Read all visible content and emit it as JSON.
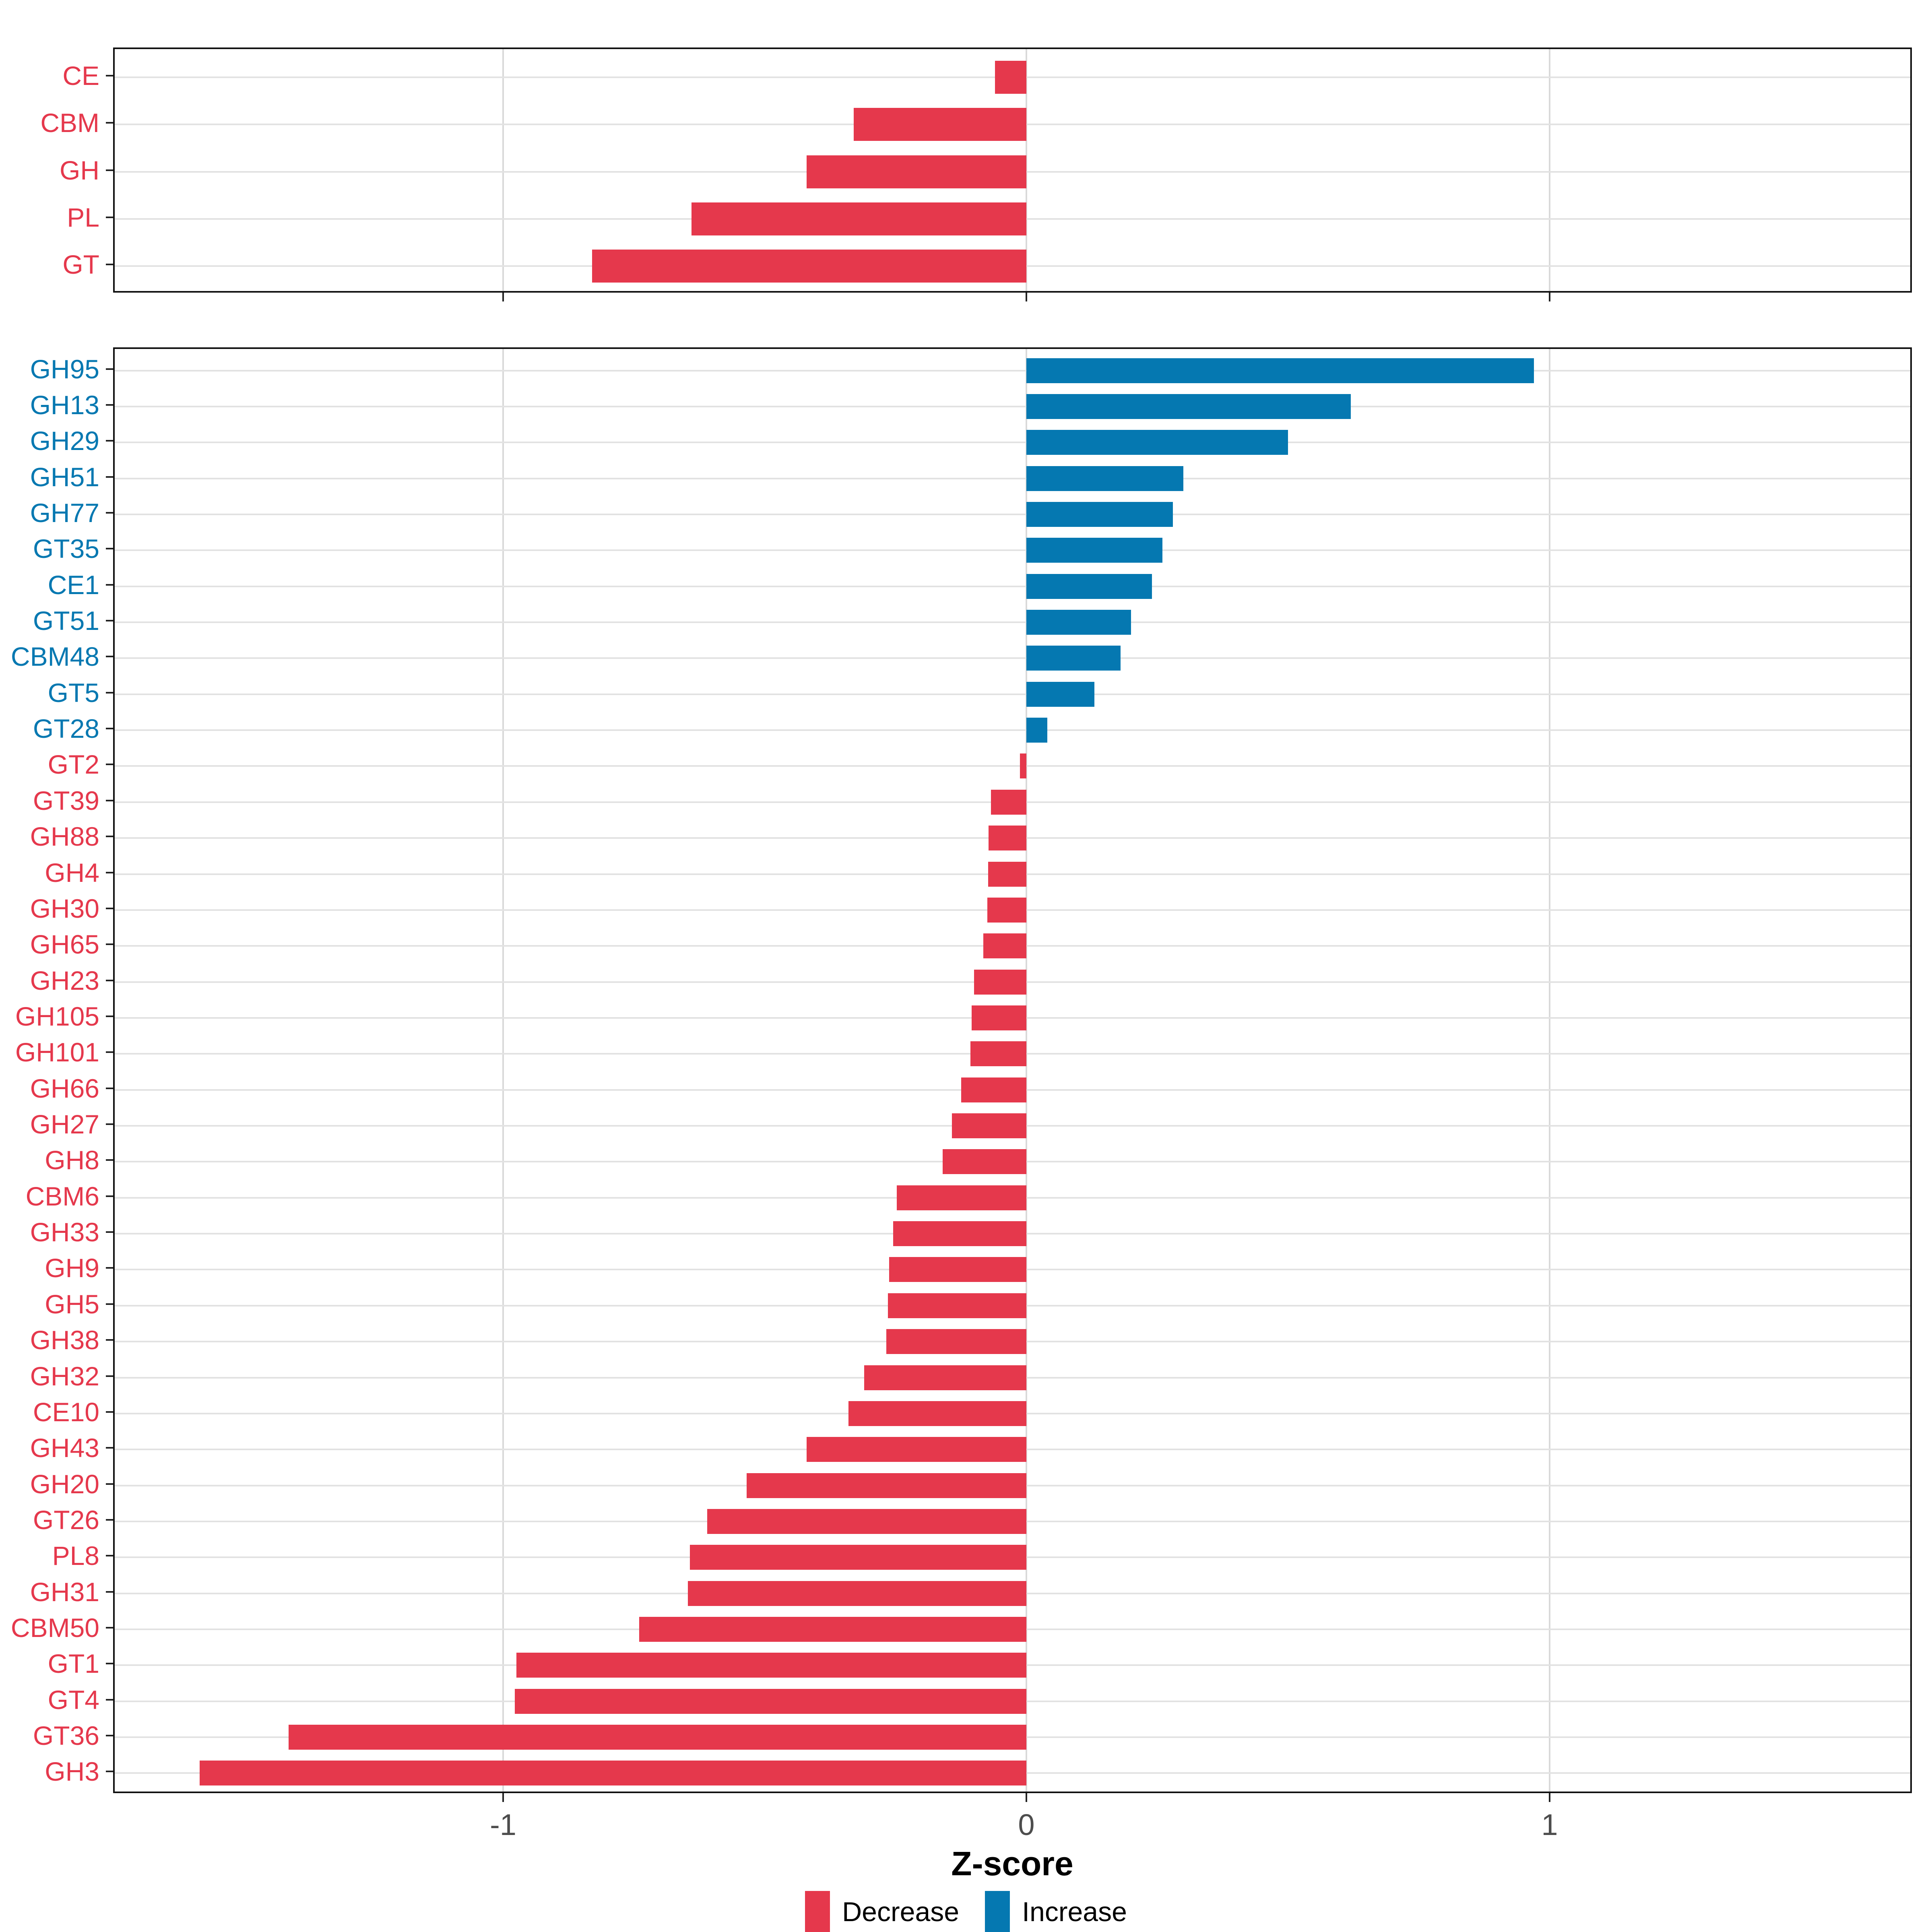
{
  "figure": {
    "xlabel": "Z-score",
    "x_ticks": [
      {
        "label": "-1",
        "value": -1
      },
      {
        "label": "0",
        "value": 0
      },
      {
        "label": "1",
        "value": 1
      }
    ],
    "legend": {
      "position": "bottom",
      "items": [
        {
          "label": "Decrease",
          "color": "#e5384c"
        },
        {
          "label": "Increase",
          "color": "#0578b1"
        }
      ]
    },
    "colors": {
      "decrease": "#e5384c",
      "increase": "#0578b1",
      "grid": "#e2e2e2",
      "vgrid": "#d9d9d9",
      "panel_border": "#111111",
      "tick": "#222222",
      "axis_text": "#4d4d4d",
      "axis_title": "#000000"
    }
  },
  "chart_data": [
    {
      "type": "bar",
      "orientation": "horizontal",
      "panel": "cazyme-classes",
      "title": "",
      "xlabel": "Z-score",
      "xlim": [
        -1.745,
        1.69
      ],
      "grid": true,
      "categories": [
        "CE",
        "CBM",
        "GH",
        "PL",
        "GT"
      ],
      "values": [
        -0.06,
        -0.33,
        -0.42,
        -0.64,
        -0.83
      ]
    },
    {
      "type": "bar",
      "orientation": "horizontal",
      "panel": "cazyme-families",
      "title": "",
      "xlabel": "Z-score",
      "xlim": [
        -1.745,
        1.69
      ],
      "grid": true,
      "categories": [
        "GH95",
        "GH13",
        "GH29",
        "GH51",
        "GH77",
        "GT35",
        "CE1",
        "GT51",
        "CBM48",
        "GT5",
        "GT28",
        "GT2",
        "GT39",
        "GH88",
        "GH4",
        "GH30",
        "GH65",
        "GH23",
        "GH105",
        "GH101",
        "GH66",
        "GH27",
        "GH8",
        "CBM6",
        "GH33",
        "GH9",
        "GH5",
        "GH38",
        "GH32",
        "CE10",
        "GH43",
        "GH20",
        "GT26",
        "PL8",
        "GH31",
        "CBM50",
        "GT1",
        "GT4",
        "GT36",
        "GH3"
      ],
      "values": [
        0.97,
        0.62,
        0.5,
        0.3,
        0.28,
        0.26,
        0.24,
        0.2,
        0.18,
        0.13,
        0.04,
        -0.012,
        -0.068,
        -0.072,
        -0.073,
        -0.075,
        -0.082,
        -0.1,
        -0.105,
        -0.107,
        -0.125,
        -0.142,
        -0.16,
        -0.248,
        -0.255,
        -0.262,
        -0.265,
        -0.268,
        -0.31,
        -0.34,
        -0.42,
        -0.535,
        -0.61,
        -0.643,
        -0.647,
        -0.74,
        -0.975,
        -0.978,
        -1.41,
        -1.58
      ]
    }
  ]
}
